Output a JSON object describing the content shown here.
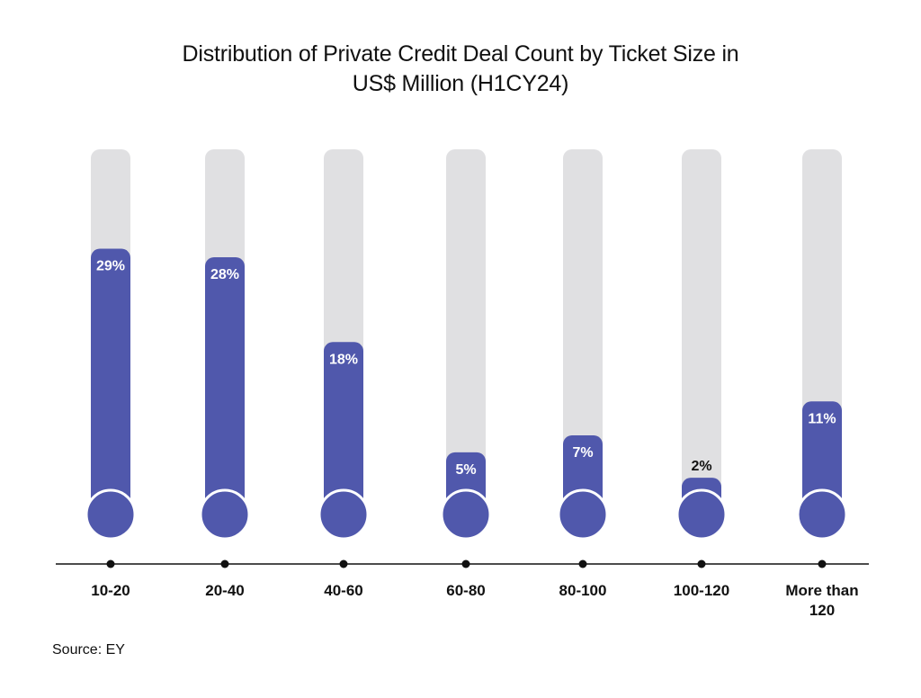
{
  "chart_data": {
    "type": "bar",
    "title_lines": [
      "Distribution of Private Credit Deal Count by Ticket Size in",
      "US$ Million (H1CY24)"
    ],
    "categories": [
      "10-20",
      "20-40",
      "40-60",
      "60-80",
      "80-100",
      "100-120",
      "More than 120"
    ],
    "values": [
      29,
      28,
      18,
      5,
      7,
      2,
      11
    ],
    "value_labels": [
      "29%",
      "28%",
      "18%",
      "5%",
      "7%",
      "2%",
      "11%"
    ],
    "ymax": 40,
    "unit": "%",
    "grid": false,
    "legend": "none"
  },
  "source": "Source: EY",
  "colors": {
    "bar": "#5058AC",
    "track": "#E0E0E2",
    "axis": "#111111",
    "label_inside": "#FFFFFF",
    "label_outside": "#111111"
  }
}
